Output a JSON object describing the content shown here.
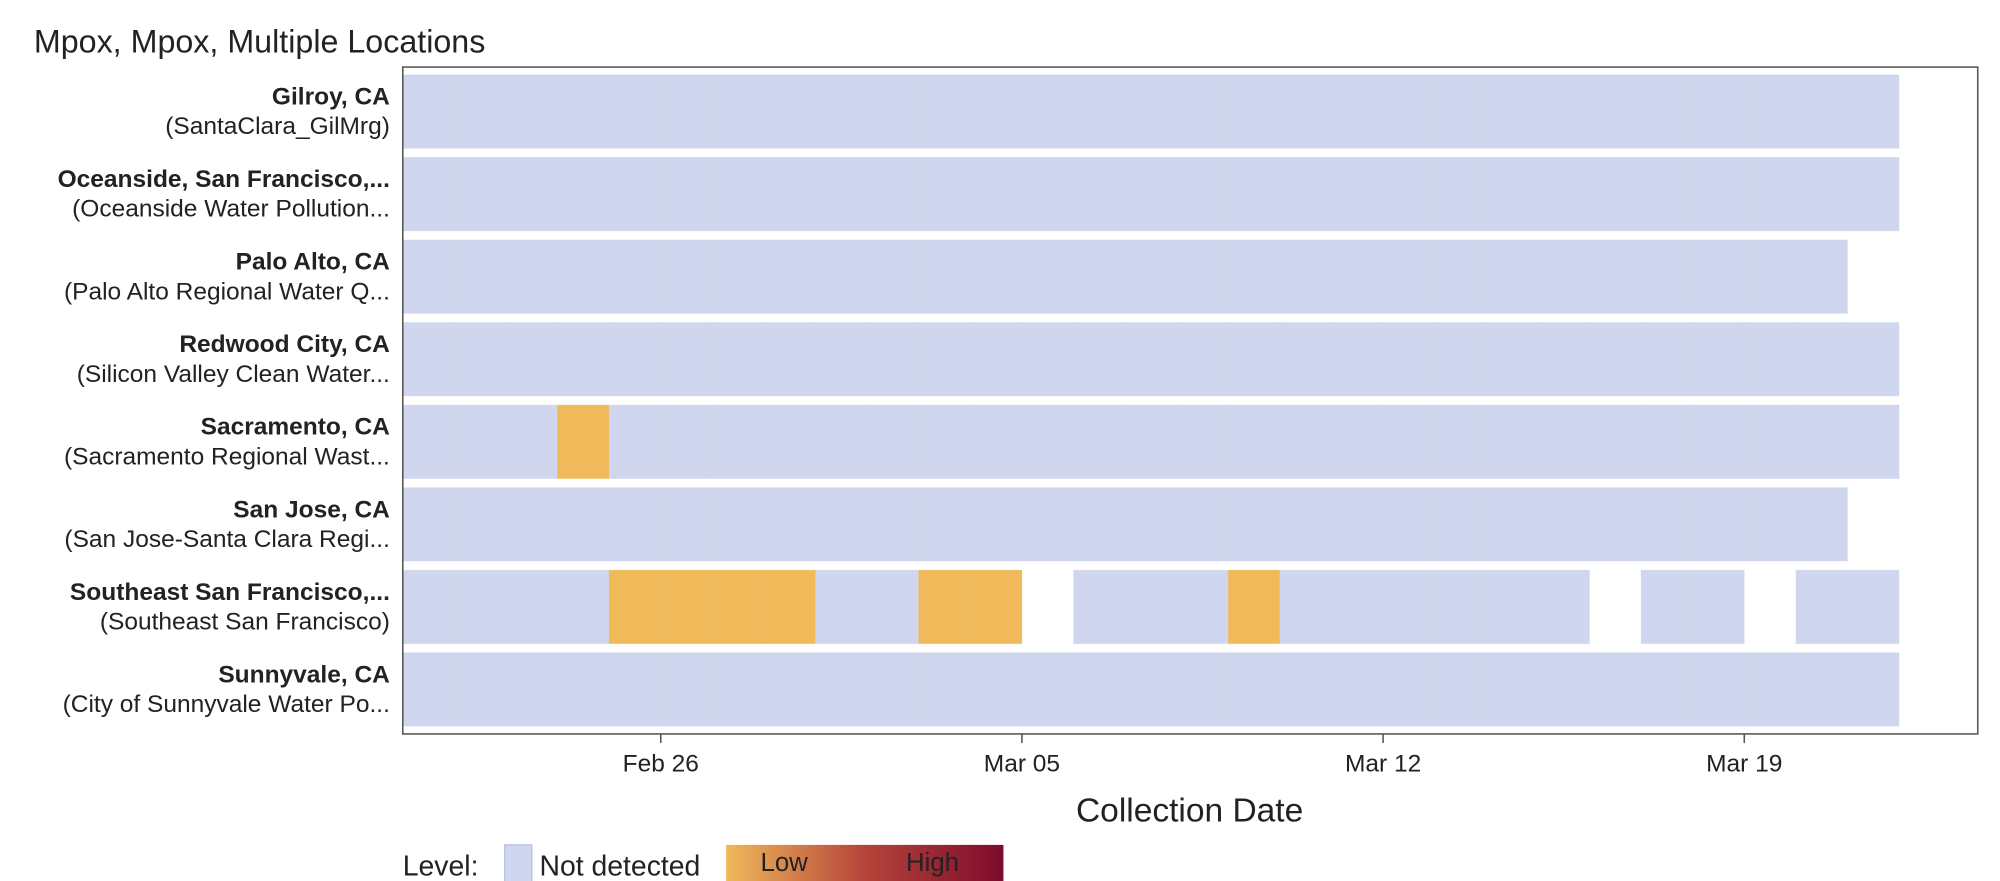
{
  "chart_data": {
    "type": "heatmap",
    "title": "Mpox, Mpox, Multiple Locations",
    "x_label": "Collection Date",
    "x": [
      "Feb 21",
      "Feb 22",
      "Feb 23",
      "Feb 24",
      "Feb 25",
      "Feb 26",
      "Feb 27",
      "Feb 28",
      "Mar 01",
      "Mar 02",
      "Mar 03",
      "Mar 04",
      "Mar 05",
      "Mar 06",
      "Mar 07",
      "Mar 08",
      "Mar 09",
      "Mar 10",
      "Mar 11",
      "Mar 12",
      "Mar 13",
      "Mar 14",
      "Mar 15",
      "Mar 16",
      "Mar 17",
      "Mar 18",
      "Mar 19",
      "Mar 20",
      "Mar 21"
    ],
    "xticks": [
      "Feb 26",
      "Mar 05",
      "Mar 12",
      "Mar 19"
    ],
    "colors": {
      "Not detected": "#cfd6ee",
      "Low": "#f0b95a"
    },
    "legend": {
      "title": "Level:",
      "items": [
        "Not detected"
      ],
      "scale": [
        "Low",
        "High"
      ],
      "scale_colors": [
        "#f0b95a",
        "#b5443a",
        "#7d0b2c"
      ]
    },
    "series": [
      {
        "name": "Gilroy, CA",
        "site": "(SantaClara_GilMrg)",
        "values": [
          "Not detected",
          "Not detected",
          "Not detected",
          "Not detected",
          "Not detected",
          "Not detected",
          "Not detected",
          "Not detected",
          "Not detected",
          "Not detected",
          "Not detected",
          "Not detected",
          "Not detected",
          "Not detected",
          "Not detected",
          "Not detected",
          "Not detected",
          "Not detected",
          "Not detected",
          "Not detected",
          "Not detected",
          "Not detected",
          "Not detected",
          "Not detected",
          "Not detected",
          "Not detected",
          "Not detected",
          "Not detected",
          "Not detected"
        ]
      },
      {
        "name": "Oceanside, San Francisco,...",
        "site": "(Oceanside Water Pollution...",
        "values": [
          "Not detected",
          "Not detected",
          "Not detected",
          "Not detected",
          "Not detected",
          "Not detected",
          "Not detected",
          "Not detected",
          "Not detected",
          "Not detected",
          "Not detected",
          "Not detected",
          "Not detected",
          "Not detected",
          "Not detected",
          "Not detected",
          "Not detected",
          "Not detected",
          "Not detected",
          "Not detected",
          "Not detected",
          "Not detected",
          "Not detected",
          "Not detected",
          "Not detected",
          "Not detected",
          "Not detected",
          "Not detected",
          "Not detected"
        ]
      },
      {
        "name": "Palo Alto, CA",
        "site": "(Palo Alto Regional Water Q...",
        "values": [
          "Not detected",
          "Not detected",
          "Not detected",
          "Not detected",
          "Not detected",
          "Not detected",
          "Not detected",
          "Not detected",
          "Not detected",
          "Not detected",
          "Not detected",
          "Not detected",
          "Not detected",
          "Not detected",
          "Not detected",
          "Not detected",
          "Not detected",
          "Not detected",
          "Not detected",
          "Not detected",
          "Not detected",
          "Not detected",
          "Not detected",
          "Not detected",
          "Not detected",
          "Not detected",
          "Not detected",
          "Not detected",
          null
        ]
      },
      {
        "name": "Redwood City, CA",
        "site": "(Silicon Valley Clean Water...",
        "values": [
          "Not detected",
          "Not detected",
          "Not detected",
          "Not detected",
          "Not detected",
          "Not detected",
          "Not detected",
          "Not detected",
          "Not detected",
          "Not detected",
          "Not detected",
          "Not detected",
          "Not detected",
          "Not detected",
          "Not detected",
          "Not detected",
          "Not detected",
          "Not detected",
          "Not detected",
          "Not detected",
          "Not detected",
          "Not detected",
          "Not detected",
          "Not detected",
          "Not detected",
          "Not detected",
          "Not detected",
          "Not detected",
          "Not detected"
        ]
      },
      {
        "name": "Sacramento, CA",
        "site": "(Sacramento Regional Wast...",
        "values": [
          "Not detected",
          "Not detected",
          "Not detected",
          "Low",
          "Not detected",
          "Not detected",
          "Not detected",
          "Not detected",
          "Not detected",
          "Not detected",
          "Not detected",
          "Not detected",
          "Not detected",
          "Not detected",
          "Not detected",
          "Not detected",
          "Not detected",
          "Not detected",
          "Not detected",
          "Not detected",
          "Not detected",
          "Not detected",
          "Not detected",
          "Not detected",
          "Not detected",
          "Not detected",
          "Not detected",
          "Not detected",
          "Not detected"
        ]
      },
      {
        "name": "San Jose, CA",
        "site": "(San Jose-Santa Clara Regi...",
        "values": [
          "Not detected",
          "Not detected",
          "Not detected",
          "Not detected",
          "Not detected",
          "Not detected",
          "Not detected",
          "Not detected",
          "Not detected",
          "Not detected",
          "Not detected",
          "Not detected",
          "Not detected",
          "Not detected",
          "Not detected",
          "Not detected",
          "Not detected",
          "Not detected",
          "Not detected",
          "Not detected",
          "Not detected",
          "Not detected",
          "Not detected",
          "Not detected",
          "Not detected",
          "Not detected",
          "Not detected",
          "Not detected",
          null
        ]
      },
      {
        "name": "Southeast San Francisco,...",
        "site": "(Southeast San Francisco)",
        "values": [
          "Not detected",
          "Not detected",
          "Not detected",
          "Not detected",
          "Low",
          "Low",
          "Low",
          "Low",
          "Not detected",
          "Not detected",
          "Low",
          "Low",
          null,
          "Not detected",
          "Not detected",
          "Not detected",
          "Low",
          "Not detected",
          "Not detected",
          "Not detected",
          "Not detected",
          "Not detected",
          "Not detected",
          null,
          "Not detected",
          "Not detected",
          null,
          "Not detected",
          "Not detected"
        ]
      },
      {
        "name": "Sunnyvale, CA",
        "site": "(City of Sunnyvale Water Po...",
        "values": [
          "Not detected",
          "Not detected",
          "Not detected",
          "Not detected",
          "Not detected",
          "Not detected",
          "Not detected",
          "Not detected",
          "Not detected",
          "Not detected",
          "Not detected",
          "Not detected",
          "Not detected",
          "Not detected",
          "Not detected",
          "Not detected",
          "Not detected",
          "Not detected",
          "Not detected",
          "Not detected",
          "Not detected",
          "Not detected",
          "Not detected",
          "Not detected",
          "Not detected",
          "Not detected",
          "Not detected",
          "Not detected",
          "Not detected"
        ]
      }
    ]
  }
}
